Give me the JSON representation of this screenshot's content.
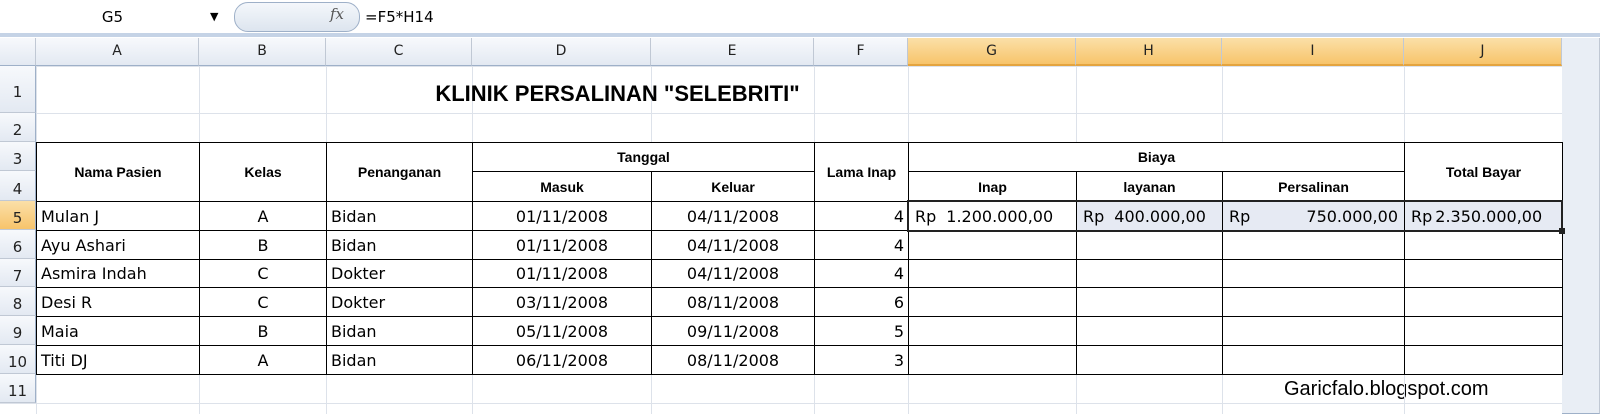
{
  "formula_bar": {
    "name_box": "G5",
    "formula": "=F5*H14",
    "fx": "fx"
  },
  "columns": [
    "A",
    "B",
    "C",
    "D",
    "E",
    "F",
    "G",
    "H",
    "I",
    "J"
  ],
  "rows": [
    "1",
    "2",
    "3",
    "4",
    "5",
    "6",
    "7",
    "8",
    "9",
    "10",
    "11"
  ],
  "title": "KLINIK PERSALINAN \"SELEBRITI\"",
  "headers": {
    "nama": "Nama Pasien",
    "kelas": "Kelas",
    "penanganan": "Penanganan",
    "tanggal": "Tanggal",
    "masuk": "Masuk",
    "keluar": "Keluar",
    "lama": "Lama Inap",
    "biaya": "Biaya",
    "inap": "Inap",
    "layanan": "layanan",
    "persalinan": "Persalinan",
    "total": "Total Bayar"
  },
  "patients": [
    {
      "nama": "Mulan J",
      "kelas": "A",
      "penanganan": "Bidan",
      "masuk": "01/11/2008",
      "keluar": "04/11/2008",
      "lama": "4"
    },
    {
      "nama": "Ayu Ashari",
      "kelas": "B",
      "penanganan": "Bidan",
      "masuk": "01/11/2008",
      "keluar": "04/11/2008",
      "lama": "4"
    },
    {
      "nama": "Asmira Indah",
      "kelas": "C",
      "penanganan": "Dokter",
      "masuk": "01/11/2008",
      "keluar": "04/11/2008",
      "lama": "4"
    },
    {
      "nama": "Desi R",
      "kelas": "C",
      "penanganan": "Dokter",
      "masuk": "03/11/2008",
      "keluar": "08/11/2008",
      "lama": "6"
    },
    {
      "nama": "Maia",
      "kelas": "B",
      "penanganan": "Bidan",
      "masuk": "05/11/2008",
      "keluar": "09/11/2008",
      "lama": "5"
    },
    {
      "nama": "Titi DJ",
      "kelas": "A",
      "penanganan": "Bidan",
      "masuk": "06/11/2008",
      "keluar": "08/11/2008",
      "lama": "3"
    }
  ],
  "row5_costs": {
    "currency": "Rp",
    "inap": "1.200.000,00",
    "layanan": "400.000,00",
    "persalinan": "750.000,00",
    "total": "2.350.000,00"
  },
  "watermark": "Garicfalo.blogspot.com"
}
